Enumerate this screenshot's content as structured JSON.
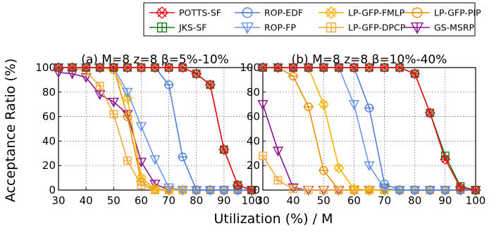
{
  "chart_data": {
    "type": "line",
    "xlabel": "Utilization (%) / M",
    "ylabel": "Acceptance Ratio (%)",
    "xlim": [
      30,
      100
    ],
    "ylim": [
      0,
      100
    ],
    "x_ticks": [
      "30",
      "40",
      "50",
      "60",
      "70",
      "80",
      "90",
      "100"
    ],
    "y_ticks": [
      "0",
      "20",
      "40",
      "60",
      "80",
      "100"
    ],
    "grid": true,
    "legend": [
      {
        "name": "POTTS-SF",
        "color": "#e8101a",
        "marker": "x-diamond"
      },
      {
        "name": "JKS-SF",
        "color": "#1a7a1a",
        "marker": "plus-square"
      },
      {
        "name": "ROP-EDF",
        "color": "#4f7fdc",
        "marker": "circle-bar"
      },
      {
        "name": "ROP-FP",
        "color": "#6d97e6",
        "marker": "triangle-down"
      },
      {
        "name": "LP-GFP-FMLP",
        "color": "#f5b400",
        "marker": "x-diamond"
      },
      {
        "name": "LP-GFP-DPCP",
        "color": "#f6a93a",
        "marker": "plus-square"
      },
      {
        "name": "LP-GFP-PIP",
        "color": "#f08e00",
        "marker": "circle-bar"
      },
      {
        "name": "GS-MSRP",
        "color": "#8a158a",
        "marker": "triangle-down"
      }
    ],
    "panels": [
      {
        "title": "(a) M=8 z=8 β=5%-10%",
        "x": [
          30,
          35,
          40,
          45,
          50,
          55,
          60,
          65,
          70,
          75,
          80,
          85,
          90,
          95,
          100
        ],
        "series": [
          {
            "name": "POTTS-SF",
            "values": [
              100,
              100,
              100,
              100,
              100,
              100,
              100,
              100,
              100,
              100,
              95,
              86,
              33,
              4,
              0
            ]
          },
          {
            "name": "JKS-SF",
            "values": [
              100,
              100,
              100,
              100,
              100,
              100,
              100,
              100,
              100,
              100,
              95,
              86,
              33,
              4,
              0
            ]
          },
          {
            "name": "ROP-EDF",
            "values": [
              100,
              100,
              100,
              100,
              100,
              100,
              100,
              100,
              86,
              27,
              0,
              0,
              0,
              0,
              0
            ]
          },
          {
            "name": "ROP-FP",
            "values": [
              100,
              100,
              100,
              100,
              100,
              80,
              52,
              25,
              2,
              0,
              0,
              0,
              0,
              0,
              0
            ]
          },
          {
            "name": "LP-GFP-FMLP",
            "values": [
              100,
              100,
              100,
              100,
              98,
              75,
              10,
              1,
              0,
              0,
              0,
              0,
              0,
              0,
              0
            ]
          },
          {
            "name": "LP-GFP-DPCP",
            "values": [
              100,
              100,
              97,
              85,
              62,
              24,
              4,
              0,
              0,
              0,
              0,
              0,
              0,
              0,
              0
            ]
          },
          {
            "name": "LP-GFP-PIP",
            "values": [
              100,
              100,
              100,
              100,
              100,
              60,
              7,
              0,
              0,
              0,
              0,
              0,
              0,
              0,
              0
            ]
          },
          {
            "name": "GS-MSRP",
            "values": [
              96,
              95,
              92,
              78,
              72,
              62,
              23,
              5,
              0,
              0,
              0,
              0,
              0,
              0,
              0
            ]
          }
        ]
      },
      {
        "title": "(b) M=8 z=8 β=10%-40%",
        "x": [
          30,
          35,
          40,
          45,
          50,
          55,
          60,
          65,
          70,
          75,
          80,
          85,
          90,
          95,
          100
        ],
        "series": [
          {
            "name": "POTTS-SF",
            "values": [
              100,
              100,
              100,
              100,
              100,
              100,
              100,
              100,
              100,
              100,
              95,
              63,
              25,
              2,
              0
            ]
          },
          {
            "name": "JKS-SF",
            "values": [
              100,
              100,
              100,
              100,
              100,
              100,
              100,
              100,
              100,
              100,
              95,
              63,
              28,
              3,
              0
            ]
          },
          {
            "name": "ROP-EDF",
            "values": [
              100,
              100,
              100,
              100,
              100,
              100,
              100,
              67,
              5,
              0,
              0,
              0,
              0,
              0,
              0
            ]
          },
          {
            "name": "ROP-FP",
            "values": [
              100,
              100,
              100,
              100,
              100,
              100,
              70,
              20,
              1,
              0,
              0,
              0,
              0,
              0,
              0
            ]
          },
          {
            "name": "LP-GFP-FMLP",
            "values": [
              100,
              100,
              100,
              100,
              70,
              18,
              1,
              0,
              0,
              0,
              0,
              0,
              0,
              0,
              0
            ]
          },
          {
            "name": "LP-GFP-DPCP",
            "values": [
              28,
              8,
              1,
              0,
              0,
              0,
              0,
              0,
              0,
              0,
              0,
              0,
              0,
              0,
              0
            ]
          },
          {
            "name": "LP-GFP-PIP",
            "values": [
              100,
              100,
              93,
              68,
              16,
              0,
              0,
              0,
              0,
              0,
              0,
              0,
              0,
              0,
              0
            ]
          },
          {
            "name": "GS-MSRP",
            "values": [
              70,
              32,
              2,
              0,
              0,
              0,
              0,
              0,
              0,
              0,
              0,
              0,
              0,
              0,
              0
            ]
          }
        ]
      }
    ]
  }
}
